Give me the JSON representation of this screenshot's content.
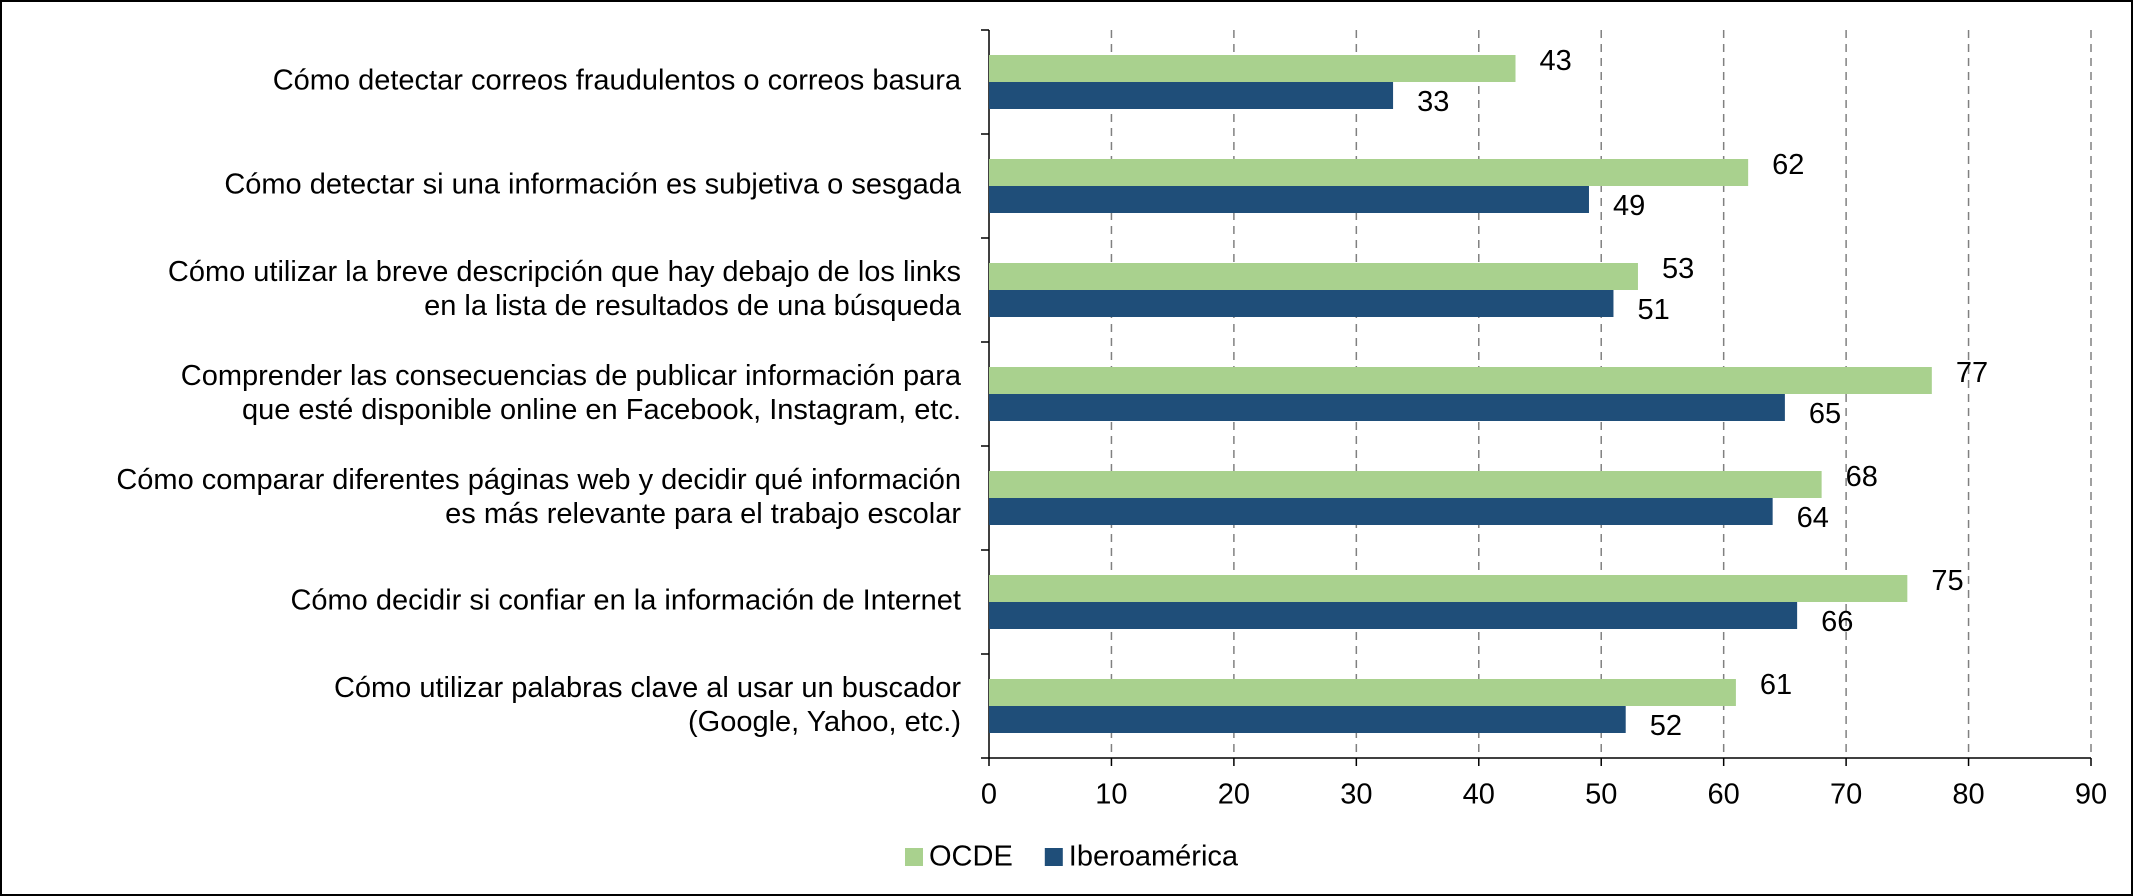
{
  "chart_data": {
    "type": "hbar",
    "categories": [
      "Cómo detectar correos fraudulentos o correos basura",
      "Cómo detectar si una información es subjetiva o sesgada",
      "Cómo utilizar la breve descripción que hay debajo de los links\nen la lista de resultados de una búsqueda",
      "Comprender las consecuencias de publicar información para\nque esté disponible online en Facebook, Instagram, etc.",
      "Cómo comparar diferentes páginas web y decidir qué información\nes más relevante para el trabajo escolar",
      "Cómo decidir si confiar en la información de Internet",
      "Cómo utilizar palabras clave al usar un buscador\n(Google, Yahoo, etc.)"
    ],
    "series": [
      {
        "name": "OCDE",
        "color": "#a9d18e",
        "values": [
          43,
          62,
          53,
          77,
          68,
          75,
          61
        ]
      },
      {
        "name": "Iberoamérica",
        "color": "#1f4e79",
        "values": [
          33,
          49,
          51,
          65,
          64,
          66,
          52
        ]
      }
    ],
    "xlim": [
      0,
      90
    ],
    "xticks": [
      0,
      10,
      20,
      30,
      40,
      50,
      60,
      70,
      80,
      90
    ],
    "grid": true,
    "legend": "bottom"
  }
}
